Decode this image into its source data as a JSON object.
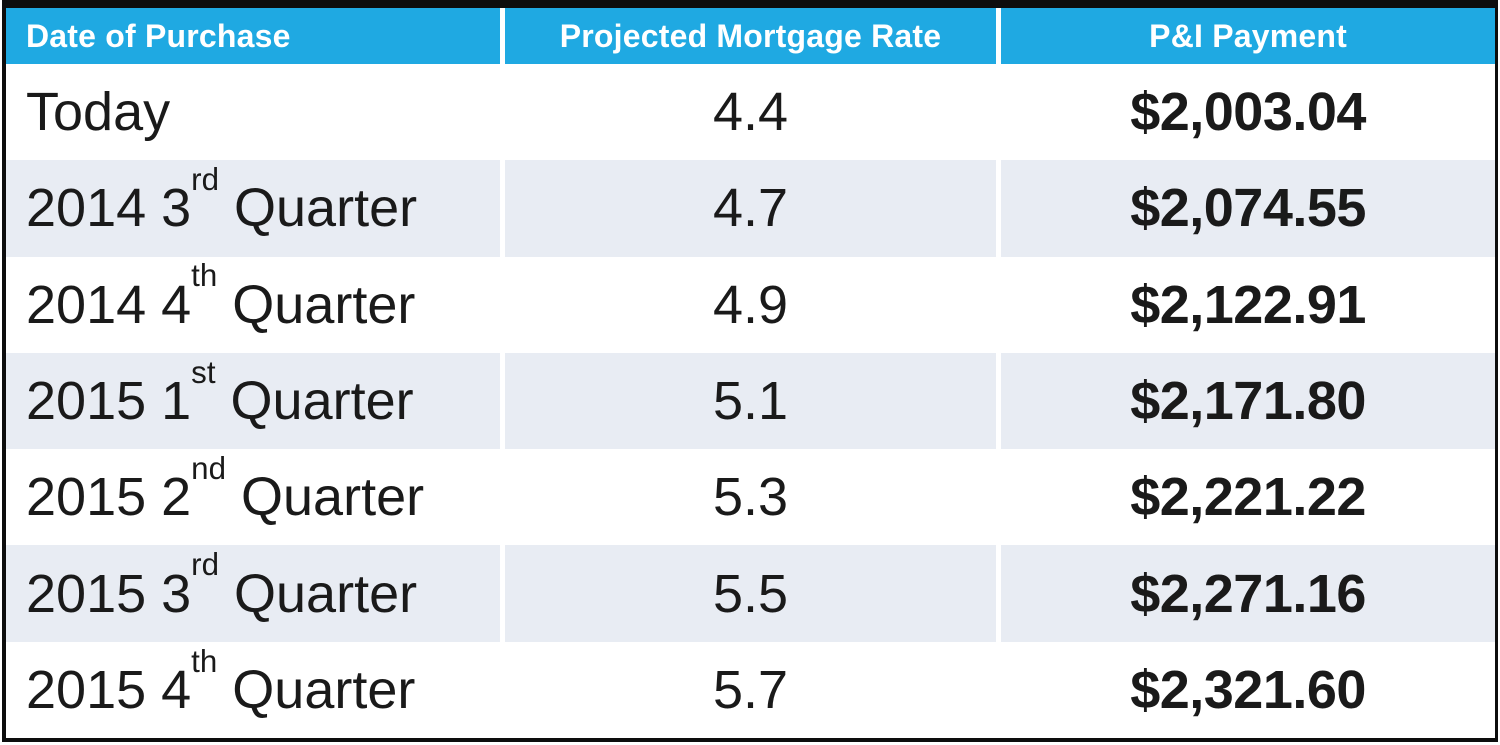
{
  "table": {
    "columns": [
      "Date of Purchase",
      "Projected Mortgage Rate",
      "P&I Payment"
    ],
    "date_parts": [
      {
        "pre": "Today",
        "sup": "",
        "post": ""
      },
      {
        "pre": "2014 3",
        "sup": "rd",
        "post": " Quarter"
      },
      {
        "pre": "2014 4",
        "sup": "th",
        "post": " Quarter"
      },
      {
        "pre": "2015 1",
        "sup": "st",
        "post": " Quarter"
      },
      {
        "pre": "2015 2",
        "sup": "nd",
        "post": " Quarter"
      },
      {
        "pre": "2015 3",
        "sup": "rd",
        "post": " Quarter"
      },
      {
        "pre": "2015 4",
        "sup": "th",
        "post": " Quarter"
      }
    ],
    "colors": {
      "header_bg": "#1FA9E2",
      "header_text": "#FFFFFF",
      "band_bg": "#E8ECF3",
      "row_bg": "#FFFFFF",
      "text": "#1A1A1A",
      "border": "#0D0D0D"
    }
  },
  "chart_data": {
    "type": "table",
    "title": "",
    "columns": [
      "Date of Purchase",
      "Projected Mortgage Rate",
      "P&I Payment"
    ],
    "rows": [
      [
        "Today",
        4.4,
        "$2,003.04"
      ],
      [
        "2014 3rd Quarter",
        4.7,
        "$2,074.55"
      ],
      [
        "2014 4th Quarter",
        4.9,
        "$2,122.91"
      ],
      [
        "2015 1st Quarter",
        5.1,
        "$2,171.80"
      ],
      [
        "2015 2nd Quarter",
        5.3,
        "$2,221.22"
      ],
      [
        "2015 3rd Quarter",
        5.5,
        "$2,271.16"
      ],
      [
        "2015 4th Quarter",
        5.7,
        "$2,321.60"
      ]
    ],
    "layout": {
      "header_style": "solid-cyan",
      "banding": "alternating-rows",
      "grid": "off"
    }
  }
}
